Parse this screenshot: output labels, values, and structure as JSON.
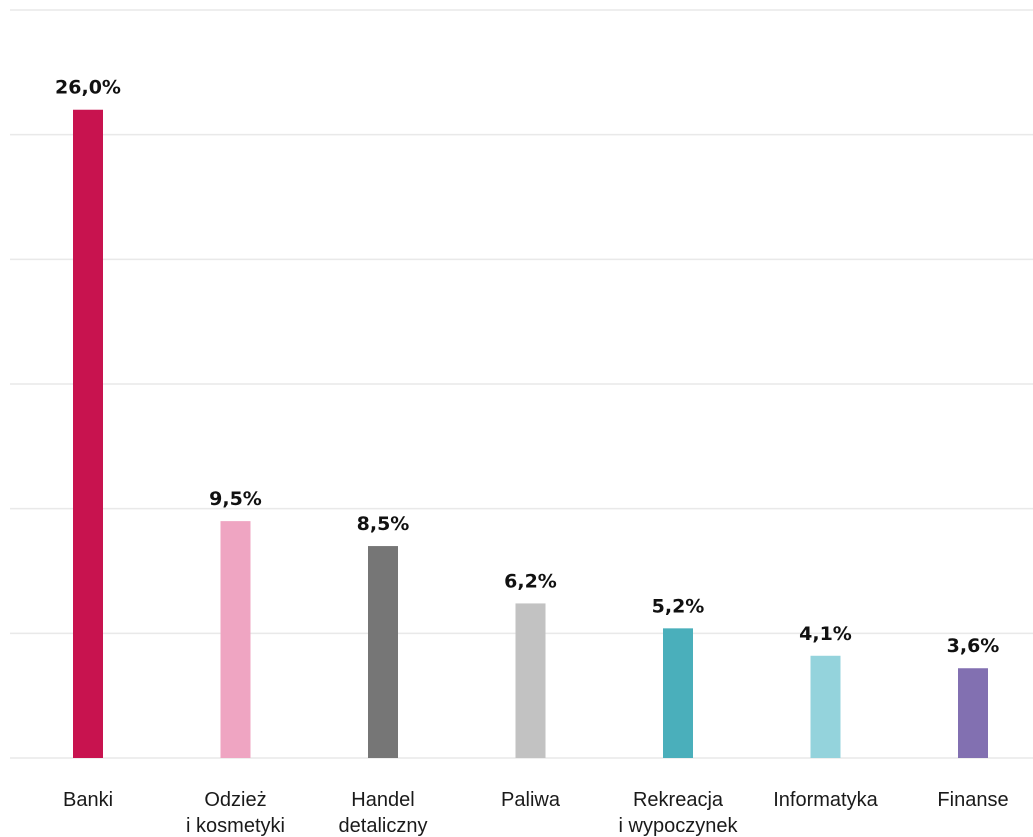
{
  "chart_data": {
    "type": "bar",
    "title": "",
    "xlabel": "",
    "ylabel": "",
    "ylim": [
      0,
      30
    ],
    "grid": true,
    "legend": "none",
    "categories": [
      [
        "Banki"
      ],
      [
        "Odzież",
        "i kosmetyki"
      ],
      [
        "Handel",
        "detaliczny"
      ],
      [
        "Paliwa"
      ],
      [
        "Rekreacja",
        "i wypoczynek"
      ],
      [
        "Informatyka"
      ],
      [
        "Finanse"
      ]
    ],
    "values": [
      26.0,
      9.5,
      8.5,
      6.2,
      5.2,
      4.1,
      3.6
    ],
    "value_labels": [
      "26,0%",
      "9,5%",
      "8,5%",
      "6,2%",
      "5,2%",
      "4,1%",
      "3,6%"
    ],
    "colors": [
      "#c8134f",
      "#efa5c2",
      "#767676",
      "#c2c2c2",
      "#4aafbb",
      "#94d3dc",
      "#8270b1"
    ]
  }
}
